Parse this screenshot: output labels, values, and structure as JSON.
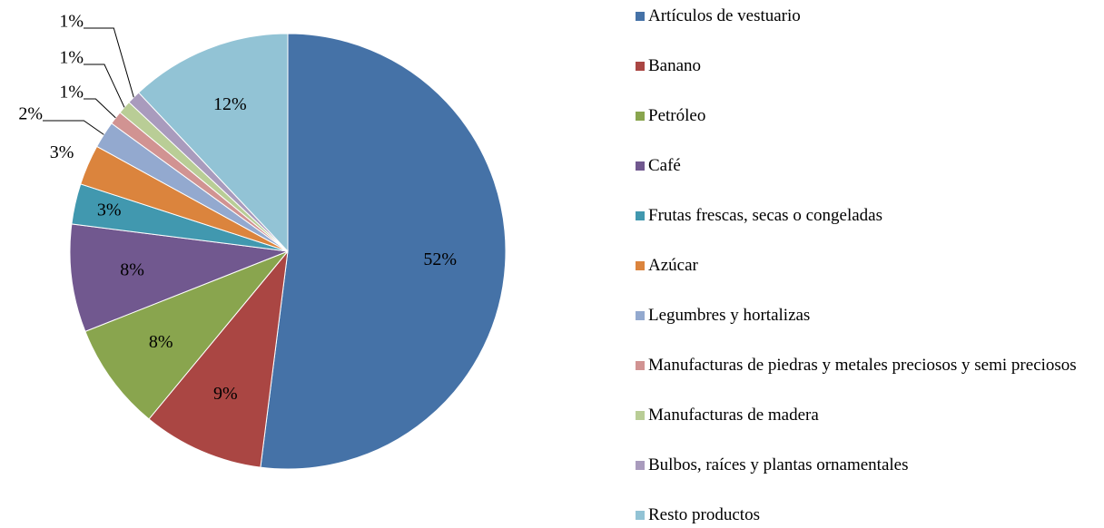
{
  "chart_data": {
    "type": "pie",
    "categories": [
      "Artículos de vestuario",
      "Banano",
      "Petróleo",
      "Café",
      "Frutas frescas, secas o congeladas",
      "Azúcar",
      "Legumbres y hortalizas",
      "Manufacturas de piedras y metales preciosos y semi preciosos",
      "Manufacturas de madera",
      "Bulbos, raíces y plantas ornamentales",
      "Resto productos"
    ],
    "values": [
      52,
      9,
      8,
      8,
      3,
      3,
      2,
      1,
      1,
      1,
      12
    ],
    "value_labels": [
      "52%",
      "9%",
      "8%",
      "8%",
      "3%",
      "3%",
      "2%",
      "1%",
      "1%",
      "1%",
      "12%"
    ],
    "colors": [
      "#4572a7",
      "#aa4643",
      "#89a54e",
      "#71588f",
      "#4198af",
      "#db843d",
      "#93a9cf",
      "#d19392",
      "#b9cd96",
      "#a99bbd",
      "#92c3d5"
    ],
    "legend": "right"
  }
}
